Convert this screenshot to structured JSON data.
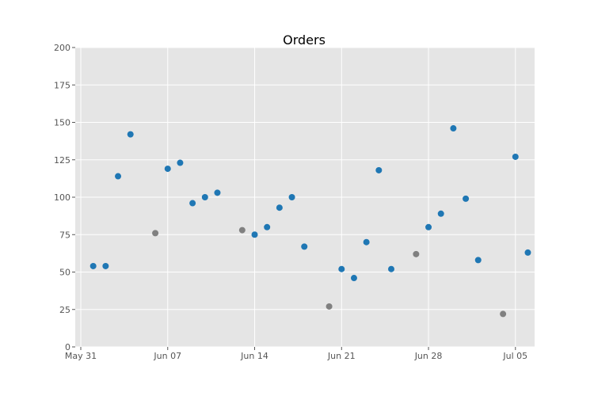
{
  "chart_data": {
    "type": "scatter",
    "title": "Orders",
    "xlabel": "",
    "ylabel": "",
    "xlim": [
      "2025-05-31",
      "2025-07-06"
    ],
    "ylim": [
      0,
      200
    ],
    "grid": true,
    "legend": "none",
    "colors": {
      "background": "#e5e5e5",
      "grid": "#ffffff",
      "primary": "#1f77b4",
      "muted": "#808080"
    },
    "x_ticks": [
      {
        "date": "2025-05-31",
        "label": "May 31"
      },
      {
        "date": "2025-06-07",
        "label": "Jun 07"
      },
      {
        "date": "2025-06-14",
        "label": "Jun 14"
      },
      {
        "date": "2025-06-21",
        "label": "Jun 21"
      },
      {
        "date": "2025-06-28",
        "label": "Jun 28"
      },
      {
        "date": "2025-07-05",
        "label": "Jul 05"
      }
    ],
    "y_ticks": [
      {
        "value": 0,
        "label": "0"
      },
      {
        "value": 25,
        "label": "25"
      },
      {
        "value": 50,
        "label": "50"
      },
      {
        "value": 75,
        "label": "75"
      },
      {
        "value": 100,
        "label": "100"
      },
      {
        "value": 125,
        "label": "125"
      },
      {
        "value": 150,
        "label": "150"
      },
      {
        "value": 175,
        "label": "175"
      },
      {
        "value": 200,
        "label": "200"
      }
    ],
    "points": [
      {
        "x": "2025-06-01",
        "y": 54,
        "color": "#1f77b4"
      },
      {
        "x": "2025-06-02",
        "y": 54,
        "color": "#1f77b4"
      },
      {
        "x": "2025-06-03",
        "y": 114,
        "color": "#1f77b4"
      },
      {
        "x": "2025-06-04",
        "y": 142,
        "color": "#1f77b4"
      },
      {
        "x": "2025-06-06",
        "y": 76,
        "color": "#808080"
      },
      {
        "x": "2025-06-07",
        "y": 119,
        "color": "#1f77b4"
      },
      {
        "x": "2025-06-08",
        "y": 123,
        "color": "#1f77b4"
      },
      {
        "x": "2025-06-09",
        "y": 96,
        "color": "#1f77b4"
      },
      {
        "x": "2025-06-10",
        "y": 100,
        "color": "#1f77b4"
      },
      {
        "x": "2025-06-11",
        "y": 103,
        "color": "#1f77b4"
      },
      {
        "x": "2025-06-13",
        "y": 78,
        "color": "#808080"
      },
      {
        "x": "2025-06-14",
        "y": 75,
        "color": "#1f77b4"
      },
      {
        "x": "2025-06-15",
        "y": 80,
        "color": "#1f77b4"
      },
      {
        "x": "2025-06-16",
        "y": 93,
        "color": "#1f77b4"
      },
      {
        "x": "2025-06-17",
        "y": 100,
        "color": "#1f77b4"
      },
      {
        "x": "2025-06-18",
        "y": 67,
        "color": "#1f77b4"
      },
      {
        "x": "2025-06-20",
        "y": 27,
        "color": "#808080"
      },
      {
        "x": "2025-06-21",
        "y": 52,
        "color": "#1f77b4"
      },
      {
        "x": "2025-06-22",
        "y": 46,
        "color": "#1f77b4"
      },
      {
        "x": "2025-06-23",
        "y": 70,
        "color": "#1f77b4"
      },
      {
        "x": "2025-06-24",
        "y": 118,
        "color": "#1f77b4"
      },
      {
        "x": "2025-06-25",
        "y": 52,
        "color": "#1f77b4"
      },
      {
        "x": "2025-06-27",
        "y": 62,
        "color": "#808080"
      },
      {
        "x": "2025-06-28",
        "y": 80,
        "color": "#1f77b4"
      },
      {
        "x": "2025-06-29",
        "y": 89,
        "color": "#1f77b4"
      },
      {
        "x": "2025-06-30",
        "y": 146,
        "color": "#1f77b4"
      },
      {
        "x": "2025-07-01",
        "y": 99,
        "color": "#1f77b4"
      },
      {
        "x": "2025-07-02",
        "y": 58,
        "color": "#1f77b4"
      },
      {
        "x": "2025-07-04",
        "y": 22,
        "color": "#808080"
      },
      {
        "x": "2025-07-05",
        "y": 127,
        "color": "#1f77b4"
      },
      {
        "x": "2025-07-06",
        "y": 63,
        "color": "#1f77b4"
      }
    ]
  }
}
